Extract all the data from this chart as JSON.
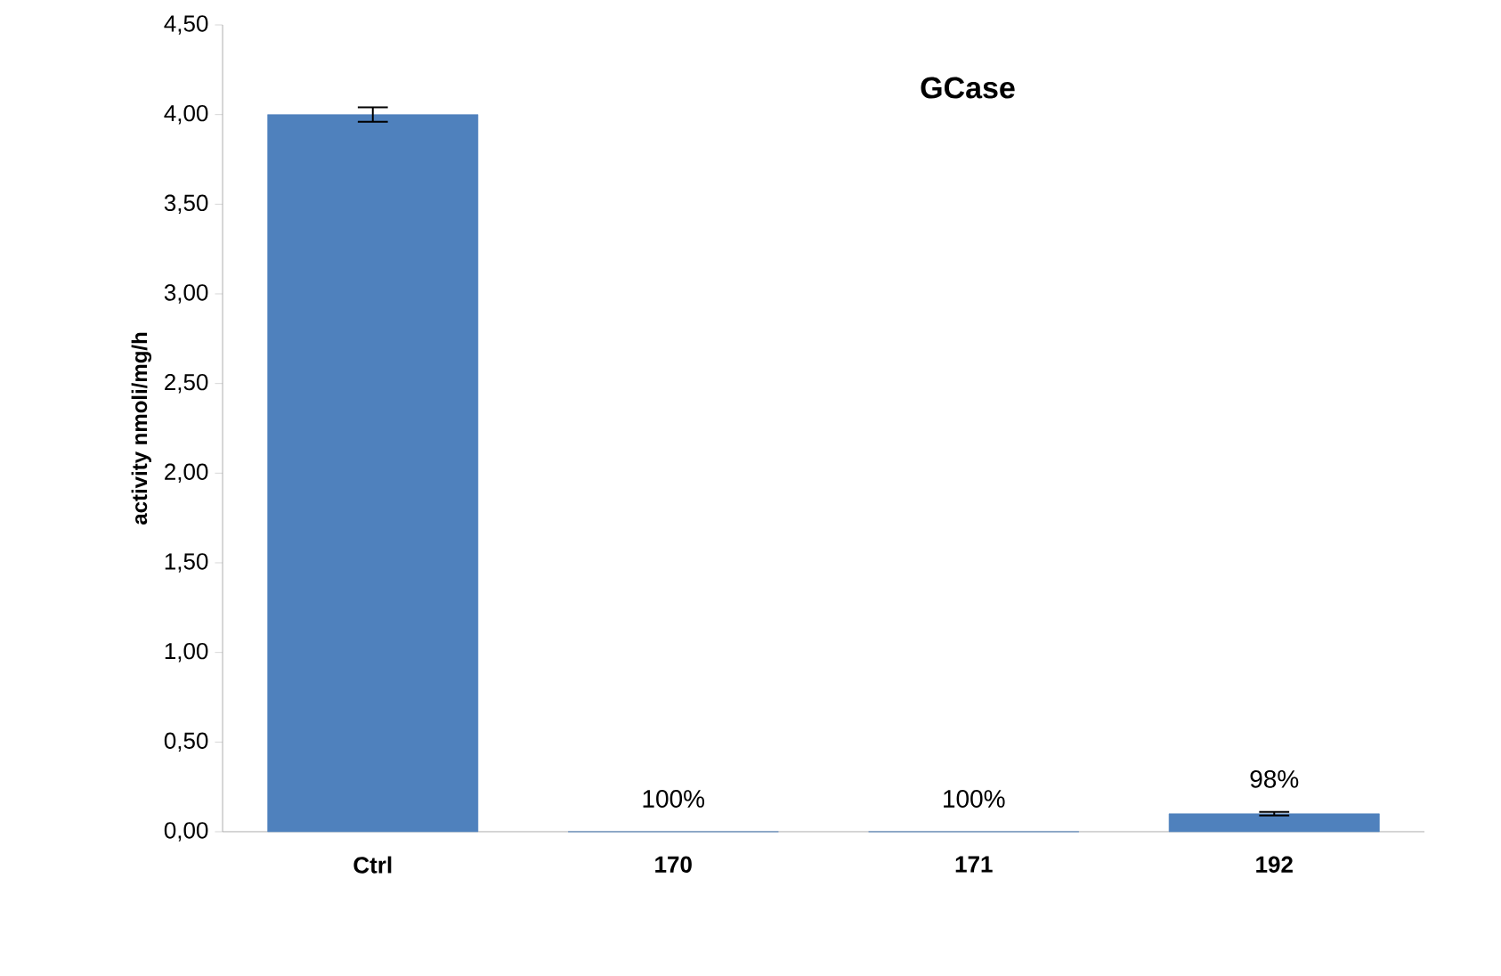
{
  "chart_data": {
    "type": "bar",
    "title": "GCase",
    "ylabel": "activity nmoli/mg/h",
    "categories": [
      "Ctrl",
      "170",
      "171",
      "192"
    ],
    "values": [
      4.0,
      0,
      0,
      0.1
    ],
    "errors": [
      0.04,
      null,
      null,
      0.01
    ],
    "annotations": [
      {
        "text": "100%",
        "x": "170",
        "y": 0
      },
      {
        "text": "100%",
        "x": "171",
        "y": 0
      },
      {
        "text": "98%",
        "x": "192",
        "y": 0.1
      }
    ],
    "color": "#4f81bd",
    "ylim": [
      0,
      4.5
    ],
    "yticks": [
      {
        "value": 0,
        "label": "0,00"
      },
      {
        "value": 0.5,
        "label": "0,50"
      },
      {
        "value": 1,
        "label": "1,00"
      },
      {
        "value": 1.5,
        "label": "1,50"
      },
      {
        "value": 2,
        "label": "2,00"
      },
      {
        "value": 2.5,
        "label": "2,50"
      },
      {
        "value": 3,
        "label": "3,00"
      },
      {
        "value": 3.5,
        "label": "3,50"
      },
      {
        "value": 4,
        "label": "4,00"
      },
      {
        "value": 4.5,
        "label": "4,50"
      }
    ]
  }
}
